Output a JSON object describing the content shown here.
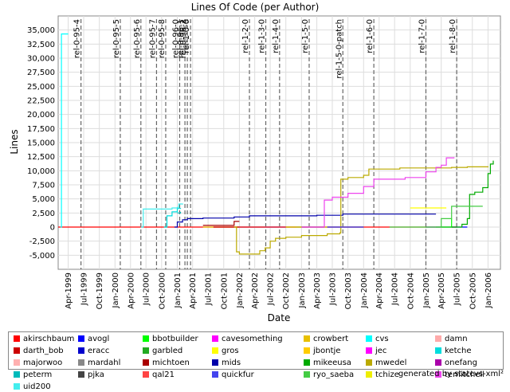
{
  "chart_data": {
    "type": "line",
    "title": "Lines Of Code (per Author)",
    "xlabel": "Date",
    "ylabel": "Lines",
    "ylim": [
      -7500,
      37500
    ],
    "yticks": [
      -5000,
      -2500,
      0,
      2500,
      5000,
      7500,
      10000,
      12500,
      15000,
      17500,
      20000,
      22500,
      25000,
      27500,
      30000,
      32500,
      35000
    ],
    "ytick_labels": [
      "-5,000",
      "-2,500",
      "0",
      "2,500",
      "5,000",
      "7,500",
      "10,000",
      "12,500",
      "15,000",
      "17,500",
      "20,000",
      "22,500",
      "25,000",
      "27,500",
      "30,000",
      "32,500",
      "35,000"
    ],
    "xlim": [
      "1999-02-01",
      "2006-03-15"
    ],
    "xticks": [
      "1999-04-01",
      "1999-07-01",
      "1999-10-01",
      "2000-01-01",
      "2000-04-01",
      "2000-07-01",
      "2000-10-01",
      "2001-01-01",
      "2001-04-01",
      "2001-07-01",
      "2001-10-01",
      "2002-01-01",
      "2002-04-01",
      "2002-07-01",
      "2002-10-01",
      "2003-01-01",
      "2003-04-01",
      "2003-07-01",
      "2003-10-01",
      "2004-01-01",
      "2004-04-01",
      "2004-07-01",
      "2004-10-01",
      "2005-01-01",
      "2005-04-01",
      "2005-07-01",
      "2005-10-01",
      "2006-01-01"
    ],
    "xtick_labels": [
      "Apr-1999",
      "Jul-1999",
      "Oct-1999",
      "Jan-2000",
      "Apr-2000",
      "Jul-2000",
      "Oct-2000",
      "Jan-2001",
      "Apr-2001",
      "Jul-2001",
      "Oct-2001",
      "Jan-2002",
      "Apr-2002",
      "Jul-2002",
      "Oct-2002",
      "Jan-2003",
      "Apr-2003",
      "Jul-2003",
      "Oct-2003",
      "Jan-2004",
      "Apr-2004",
      "Jul-2004",
      "Oct-2004",
      "Jan-2005",
      "Apr-2005",
      "Jul-2005",
      "Oct-2005",
      "Jan-2006"
    ],
    "grid": true,
    "legend_position": "bottom",
    "markers": [
      {
        "label": "rel-0-95-4",
        "date": "1999-06-15"
      },
      {
        "label": "rel-0-95-5",
        "date": "2000-02-01"
      },
      {
        "label": "rel-0-95-6",
        "date": "2000-06-01"
      },
      {
        "label": "rel-0-95-7",
        "date": "2000-09-01"
      },
      {
        "label": "rel-0-95-8",
        "date": "2000-10-25"
      },
      {
        "label": "rel-0-96-0",
        "date": "2001-01-15"
      },
      {
        "label": "rel-0-96-1",
        "date": "2001-02-15"
      },
      {
        "label": "rel-0-96-2",
        "date": "2001-03-01"
      },
      {
        "label": "rel-1-0-0",
        "date": "2001-03-20"
      },
      {
        "label": "rel-1-2-0",
        "date": "2002-03-01"
      },
      {
        "label": "rel-1-3-0",
        "date": "2002-06-05"
      },
      {
        "label": "rel-1-4-0",
        "date": "2002-08-25"
      },
      {
        "label": "rel-1-5-0",
        "date": "2003-02-15"
      },
      {
        "label": "rel-1-5-0-patch",
        "date": "2003-09-01"
      },
      {
        "label": "rel-1-6-0",
        "date": "2004-03-01"
      },
      {
        "label": "rel-1-7-0",
        "date": "2005-01-01"
      },
      {
        "label": "rel-1-8-0",
        "date": "2005-07-01"
      }
    ],
    "series": [
      {
        "name": "akirschbaum",
        "color": "#ff0000",
        "points": [
          [
            "1999-02-01",
            0
          ],
          [
            "2005-06-01",
            0
          ],
          [
            "2005-07-01",
            0
          ]
        ]
      },
      {
        "name": "avogl",
        "color": "#0000ff",
        "points": [
          [
            "2005-01-01",
            0
          ],
          [
            "2005-09-01",
            0
          ]
        ]
      },
      {
        "name": "bbotbuilder",
        "color": "#00ff00",
        "points": [
          [
            "2005-03-01",
            0
          ],
          [
            "2005-06-01",
            1500
          ]
        ]
      },
      {
        "name": "cavesomething",
        "color": "#ff00ff",
        "points": [
          [
            "2002-01-01",
            0
          ],
          [
            "2003-01-01",
            0
          ]
        ]
      },
      {
        "name": "crowbert",
        "color": "#e8c000",
        "points": [
          [
            "2001-06-01",
            0
          ],
          [
            "2002-06-01",
            0
          ]
        ]
      },
      {
        "name": "cvs",
        "color": "#00ffff",
        "points": [
          [
            "1999-02-15",
            0
          ],
          [
            "1999-02-20",
            34300
          ],
          [
            "1999-04-01",
            34300
          ]
        ]
      },
      {
        "name": "damn",
        "color": "#ffaaaa",
        "points": [
          [
            "2002-01-01",
            0
          ],
          [
            "2002-12-01",
            0
          ]
        ]
      },
      {
        "name": "darth_bob",
        "color": "#cc0000",
        "points": [
          [
            "2001-08-01",
            0
          ],
          [
            "2002-06-01",
            0
          ]
        ]
      },
      {
        "name": "eracc",
        "color": "#0000cc",
        "points": [
          [
            "2002-06-01",
            0
          ],
          [
            "2003-01-01",
            0
          ]
        ]
      },
      {
        "name": "garbled",
        "color": "#22aa22",
        "points": [
          [
            "2003-01-01",
            0
          ],
          [
            "2004-01-01",
            0
          ]
        ]
      },
      {
        "name": "gros",
        "color": "#ffff00",
        "points": [
          [
            "2004-10-01",
            3400
          ],
          [
            "2005-05-01",
            3400
          ]
        ]
      },
      {
        "name": "jbontje",
        "color": "#ffcc00",
        "points": [
          [
            "2003-01-01",
            0
          ],
          [
            "2004-01-01",
            0
          ]
        ]
      },
      {
        "name": "jec",
        "color": "#ff00ff",
        "points": [
          [
            "2002-01-01",
            0
          ],
          [
            "2002-12-01",
            0
          ]
        ]
      },
      {
        "name": "ketche",
        "color": "#00dddd",
        "points": [
          [
            "2000-10-15",
            0
          ],
          [
            "2000-11-01",
            2000
          ],
          [
            "2000-12-01",
            2700
          ],
          [
            "2001-01-01",
            3300
          ],
          [
            "2001-01-20",
            3400
          ]
        ]
      },
      {
        "name": "majorwoo",
        "color": "#ffb0b0",
        "points": [
          [
            "2003-01-01",
            0
          ],
          [
            "2004-01-01",
            0
          ]
        ]
      },
      {
        "name": "mardahl",
        "color": "#888888",
        "points": [
          [
            "2002-01-01",
            0
          ],
          [
            "2003-01-01",
            0
          ]
        ]
      },
      {
        "name": "michtoen",
        "color": "#aa0000",
        "points": [
          [
            "2001-06-01",
            300
          ],
          [
            "2001-11-15",
            300
          ],
          [
            "2001-12-01",
            1000
          ],
          [
            "2002-01-01",
            1000
          ]
        ]
      },
      {
        "name": "mids",
        "color": "#0000aa",
        "points": [
          [
            "2000-12-15",
            0
          ],
          [
            "2001-01-01",
            900
          ],
          [
            "2001-02-01",
            1300
          ],
          [
            "2001-03-01",
            1500
          ],
          [
            "2001-06-01",
            1600
          ],
          [
            "2001-12-01",
            1800
          ],
          [
            "2002-03-01",
            2000
          ],
          [
            "2002-09-01",
            2000
          ],
          [
            "2003-04-01",
            2100
          ],
          [
            "2003-09-01",
            2300
          ],
          [
            "2004-06-01",
            2300
          ],
          [
            "2005-03-01",
            2300
          ]
        ]
      },
      {
        "name": "mikeeusa",
        "color": "#00aa00",
        "points": [
          [
            "2005-06-01",
            0
          ],
          [
            "2005-08-01",
            500
          ],
          [
            "2005-09-01",
            1500
          ],
          [
            "2005-09-15",
            5800
          ],
          [
            "2005-10-15",
            6200
          ],
          [
            "2005-12-01",
            7000
          ],
          [
            "2006-01-01",
            9500
          ],
          [
            "2006-01-15",
            11200
          ],
          [
            "2006-02-01",
            11800
          ]
        ]
      },
      {
        "name": "mwedel",
        "color": "#bbaa00",
        "points": [
          [
            "2001-12-01",
            0
          ],
          [
            "2001-12-15",
            -4400
          ],
          [
            "2002-01-01",
            -4800
          ],
          [
            "2002-04-01",
            -4800
          ],
          [
            "2002-05-01",
            -4200
          ],
          [
            "2002-06-01",
            -3700
          ],
          [
            "2002-07-01",
            -2500
          ],
          [
            "2002-08-01",
            -2000
          ],
          [
            "2002-10-01",
            -1800
          ],
          [
            "2003-01-01",
            -1500
          ],
          [
            "2003-06-01",
            -1200
          ],
          [
            "2003-08-15",
            -1000
          ],
          [
            "2003-08-20",
            8500
          ],
          [
            "2003-10-01",
            8800
          ],
          [
            "2004-01-01",
            9200
          ],
          [
            "2004-02-01",
            10300
          ],
          [
            "2004-08-01",
            10500
          ],
          [
            "2005-03-01",
            10500
          ],
          [
            "2005-06-01",
            10600
          ],
          [
            "2005-09-01",
            10700
          ],
          [
            "2006-01-01",
            10800
          ]
        ]
      },
      {
        "name": "onefang",
        "color": "#aa00aa",
        "points": [
          [
            "2003-01-01",
            0
          ],
          [
            "2004-01-01",
            0
          ]
        ]
      },
      {
        "name": "peterm",
        "color": "#00bbbb",
        "points": [
          [
            "2001-01-01",
            2500
          ],
          [
            "2001-01-20",
            2700
          ]
        ]
      },
      {
        "name": "pjka",
        "color": "#444444",
        "points": [
          [
            "2002-01-01",
            0
          ],
          [
            "2003-01-01",
            0
          ]
        ]
      },
      {
        "name": "qal21",
        "color": "#ff4444",
        "points": [
          [
            "2002-01-01",
            0
          ],
          [
            "2002-12-01",
            0
          ]
        ]
      },
      {
        "name": "quickfur",
        "color": "#4444ee",
        "points": [
          [
            "2003-01-01",
            0
          ],
          [
            "2004-01-01",
            0
          ]
        ]
      },
      {
        "name": "ryo_saeba",
        "color": "#44cc44",
        "points": [
          [
            "2004-06-01",
            0
          ],
          [
            "2005-01-01",
            0
          ],
          [
            "2005-04-01",
            1500
          ],
          [
            "2005-06-01",
            3700
          ],
          [
            "2005-12-01",
            3700
          ]
        ]
      },
      {
        "name": "tchize",
        "color": "#eeee00",
        "points": [
          [
            "2002-10-01",
            0
          ],
          [
            "2003-06-01",
            0
          ]
        ]
      },
      {
        "name": "temitchell",
        "color": "#ee44ee",
        "points": [
          [
            "2003-01-01",
            0
          ],
          [
            "2003-05-01",
            0
          ],
          [
            "2003-05-15",
            4800
          ],
          [
            "2003-07-01",
            5300
          ],
          [
            "2003-10-01",
            6000
          ],
          [
            "2004-01-01",
            7200
          ],
          [
            "2004-03-01",
            8500
          ],
          [
            "2004-09-01",
            8800
          ],
          [
            "2005-01-01",
            9800
          ],
          [
            "2005-03-01",
            10600
          ],
          [
            "2005-04-01",
            11000
          ],
          [
            "2005-05-01",
            12300
          ],
          [
            "2005-06-15",
            12400
          ]
        ]
      },
      {
        "name": "uid200",
        "color": "#44eeee",
        "points": [
          [
            "2000-06-01",
            0
          ],
          [
            "2000-06-15",
            3200
          ],
          [
            "2000-11-01",
            3200
          ],
          [
            "2000-12-01",
            3400
          ],
          [
            "2001-01-01",
            3500
          ],
          [
            "2001-01-10",
            4100
          ],
          [
            "2001-02-01",
            4000
          ]
        ]
      }
    ]
  },
  "footer_text": "generated by statcvs-xml²"
}
